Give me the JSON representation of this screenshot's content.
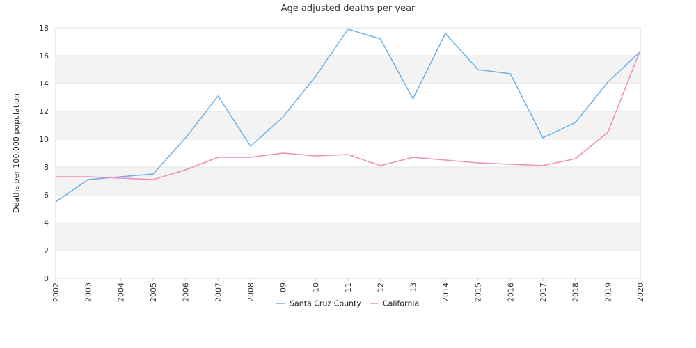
{
  "chart_data": {
    "type": "line",
    "title": "Age adjusted deaths per year",
    "xlabel": "",
    "ylabel": "Deaths per 100,000 population",
    "categories": [
      "2002",
      "2003",
      "2004",
      "2005",
      "2006",
      "2007",
      "2008",
      "09",
      "10",
      "11",
      "12",
      "13",
      "2014",
      "2015",
      "2016",
      "2017",
      "2018",
      "2019",
      "2020"
    ],
    "ylim": [
      0,
      18
    ],
    "yticks": [
      0,
      2,
      4,
      6,
      8,
      10,
      12,
      14,
      16,
      18
    ],
    "grid": "alternating horizontal bands",
    "legend_position": "bottom-center",
    "series": [
      {
        "name": "Santa Cruz County",
        "color": "#6ab0e8",
        "values": [
          5.5,
          7.1,
          7.3,
          7.5,
          10.1,
          13.1,
          9.5,
          11.6,
          14.5,
          17.9,
          17.2,
          12.9,
          17.6,
          15.0,
          14.7,
          10.1,
          11.2,
          14.1,
          16.3
        ]
      },
      {
        "name": "California",
        "color": "#f08cbc",
        "values": [
          7.3,
          7.3,
          7.2,
          7.1,
          7.8,
          8.7,
          8.7,
          9.0,
          8.8,
          8.9,
          8.1,
          8.7,
          8.5,
          8.3,
          8.2,
          8.1,
          8.6,
          10.5,
          16.4
        ]
      }
    ]
  }
}
